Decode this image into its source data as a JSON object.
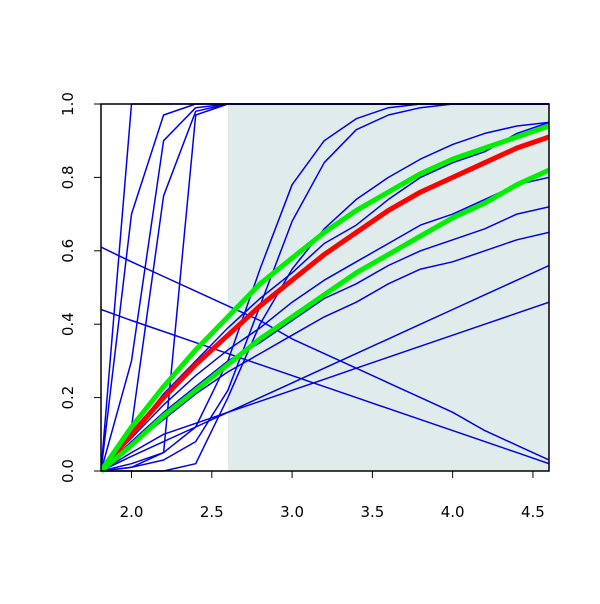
{
  "chart_data": {
    "type": "line",
    "x": [
      1.81,
      2.0,
      2.2,
      2.4,
      2.6,
      2.8,
      3.0,
      3.2,
      3.4,
      3.6,
      3.8,
      4.0,
      4.2,
      4.4,
      4.6
    ],
    "xlim": [
      1.81,
      4.6
    ],
    "ylim": [
      0,
      1
    ],
    "xticks": [
      {
        "value": 2,
        "label": "2.0"
      },
      2.5,
      {
        "value": 3,
        "label": "3.0"
      },
      3.5,
      {
        "value": 4,
        "label": "4.0"
      },
      4.5
    ],
    "yticks": [
      {
        "value": 0,
        "label": "0.0"
      },
      0.2,
      0.4,
      0.6,
      0.8,
      {
        "value": 1,
        "label": "1.0"
      }
    ],
    "shaded_region": {
      "x": [
        2.6,
        4.6
      ],
      "color": "#e0ecec"
    },
    "series": [
      {
        "color": "#0000ee",
        "linewidth": 1.5,
        "values": [
          0,
          1,
          1,
          1,
          1,
          1,
          1,
          1,
          1,
          1,
          1,
          1,
          1,
          1,
          1
        ]
      },
      {
        "color": "#0000ee",
        "linewidth": 1.5,
        "values": [
          0,
          0.7,
          0.97,
          1,
          1,
          1,
          1,
          1,
          1,
          1,
          1,
          1,
          1,
          1,
          1
        ]
      },
      {
        "color": "#0000ee",
        "linewidth": 1.5,
        "values": [
          0,
          0.3,
          0.9,
          0.99,
          1,
          1,
          1,
          1,
          1,
          1,
          1,
          1,
          1,
          1,
          1
        ]
      },
      {
        "color": "#0000ee",
        "linewidth": 1.5,
        "values": [
          0,
          0.12,
          0.75,
          0.98,
          1,
          1,
          1,
          1,
          1,
          1,
          1,
          1,
          1,
          1,
          1
        ]
      },
      {
        "color": "#0000ee",
        "linewidth": 1.5,
        "values": [
          0,
          0.01,
          0.05,
          0.97,
          1,
          1,
          1,
          1,
          1,
          1,
          1,
          1,
          1,
          1,
          1
        ]
      },
      {
        "color": "#0000ee",
        "linewidth": 1.5,
        "values": [
          0,
          0.02,
          0.05,
          0.12,
          0.3,
          0.55,
          0.78,
          0.9,
          0.96,
          0.99,
          1,
          1,
          1,
          1,
          1
        ]
      },
      {
        "color": "#0000ee",
        "linewidth": 1.5,
        "values": [
          0,
          0.01,
          0.03,
          0.08,
          0.22,
          0.45,
          0.68,
          0.84,
          0.93,
          0.97,
          0.99,
          1,
          1,
          1,
          1
        ]
      },
      {
        "color": "#0000ee",
        "linewidth": 1.5,
        "values": [
          0.61,
          0.57,
          0.53,
          0.49,
          0.45,
          0.41,
          0.36,
          0.32,
          0.28,
          0.24,
          0.2,
          0.16,
          0.11,
          0.07,
          0.03
        ]
      },
      {
        "color": "#0000ee",
        "linewidth": 1.5,
        "values": [
          0.44,
          0.41,
          0.38,
          0.35,
          0.32,
          0.29,
          0.26,
          0.23,
          0.2,
          0.17,
          0.14,
          0.11,
          0.08,
          0.05,
          0.02
        ]
      },
      {
        "color": "#0000ee",
        "linewidth": 1.5,
        "values": [
          0,
          0,
          0,
          0.02,
          0.2,
          0.4,
          0.55,
          0.66,
          0.74,
          0.8,
          0.85,
          0.89,
          0.92,
          0.94,
          0.95
        ]
      },
      {
        "color": "#0000ee",
        "linewidth": 1.5,
        "values": [
          0,
          0.1,
          0.21,
          0.3,
          0.39,
          0.47,
          0.54,
          0.62,
          0.67,
          0.74,
          0.8,
          0.84,
          0.87,
          0.92,
          0.95
        ]
      },
      {
        "color": "#0000ee",
        "linewidth": 1.5,
        "values": [
          0,
          0.09,
          0.18,
          0.26,
          0.33,
          0.39,
          0.46,
          0.52,
          0.57,
          0.62,
          0.67,
          0.7,
          0.74,
          0.78,
          0.8
        ]
      },
      {
        "color": "#0000ee",
        "linewidth": 1.5,
        "values": [
          0,
          0.08,
          0.16,
          0.23,
          0.3,
          0.35,
          0.41,
          0.47,
          0.51,
          0.56,
          0.6,
          0.63,
          0.66,
          0.7,
          0.72
        ]
      },
      {
        "color": "#0000ee",
        "linewidth": 1.5,
        "values": [
          0,
          0.07,
          0.14,
          0.21,
          0.27,
          0.32,
          0.37,
          0.42,
          0.46,
          0.51,
          0.55,
          0.57,
          0.6,
          0.63,
          0.65
        ]
      },
      {
        "color": "#0000ee",
        "linewidth": 1.5,
        "values": [
          0,
          0.04,
          0.08,
          0.12,
          0.16,
          0.2,
          0.24,
          0.28,
          0.32,
          0.36,
          0.4,
          0.44,
          0.48,
          0.52,
          0.56
        ]
      },
      {
        "color": "#0000ee",
        "linewidth": 1.5,
        "values": [
          0,
          0.05,
          0.1,
          0.13,
          0.16,
          0.19,
          0.22,
          0.25,
          0.28,
          0.31,
          0.34,
          0.37,
          0.4,
          0.43,
          0.46
        ]
      },
      {
        "color": "#ff0000",
        "linewidth": 5,
        "values": [
          0,
          0.1,
          0.2,
          0.29,
          0.37,
          0.45,
          0.52,
          0.59,
          0.65,
          0.71,
          0.76,
          0.8,
          0.84,
          0.88,
          0.91
        ]
      },
      {
        "color": "#00ee00",
        "linewidth": 5,
        "values": [
          0,
          0.12,
          0.23,
          0.33,
          0.42,
          0.51,
          0.58,
          0.65,
          0.71,
          0.76,
          0.81,
          0.85,
          0.88,
          0.91,
          0.94
        ]
      },
      {
        "color": "#00ee00",
        "linewidth": 5,
        "values": [
          0,
          0.07,
          0.15,
          0.22,
          0.29,
          0.36,
          0.42,
          0.48,
          0.54,
          0.59,
          0.64,
          0.69,
          0.73,
          0.78,
          0.82
        ]
      }
    ]
  }
}
